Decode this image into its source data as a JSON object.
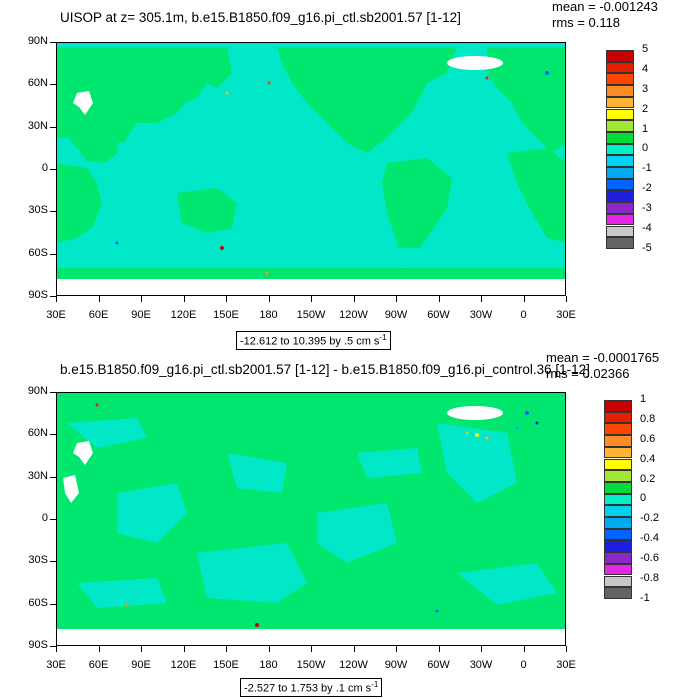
{
  "colors": {
    "land": "#00e66e",
    "ocean": "#00e8c8",
    "ice": "#ffffff",
    "frame": "#000000"
  },
  "panels": [
    {
      "title": "UISOP at z= 305.1m, b.e15.B1850.f09_g16.pi_ctl.sb2001.57 [1-12]",
      "mean": "mean = -0.001243",
      "rms": "rms = 0.118",
      "range_label": "-12.612 to 10.395 by .5 cm s",
      "range_sup": "-1",
      "colorbar_labels": [
        "5",
        "4",
        "3",
        "2",
        "1",
        "0",
        "-1",
        "-2",
        "-3",
        "-4",
        "-5"
      ],
      "colorbar_colors": [
        "#c80000",
        "#e61e00",
        "#ff4600",
        "#ff8c28",
        "#ffb432",
        "#ffff00",
        "#a0e632",
        "#00dc3c",
        "#00f0c8",
        "#00d2f0",
        "#00aaf0",
        "#0064ff",
        "#1e1edc",
        "#8c28c8",
        "#e628e6",
        "#c8c8c8",
        "#646464"
      ]
    },
    {
      "title": "b.e15.B1850.f09_g16.pi_ctl.sb2001.57 [1-12] - b.e15.B1850.f09_g16.pi_control.36 [1-12]",
      "mean": "mean = -0.0001765",
      "rms": "rms = 0.02366",
      "range_label": "-2.527 to 1.753 by .1 cm s",
      "range_sup": "-1",
      "colorbar_labels": [
        "1",
        "0.8",
        "0.6",
        "0.4",
        "0.2",
        "0",
        "-0.2",
        "-0.4",
        "-0.6",
        "-0.8",
        "-1"
      ],
      "colorbar_colors": [
        "#c80000",
        "#e61e00",
        "#ff4600",
        "#ff8c28",
        "#ffb432",
        "#ffff00",
        "#a0e632",
        "#00dc3c",
        "#00f0c8",
        "#00d2f0",
        "#00aaf0",
        "#0064ff",
        "#1e1edc",
        "#8c28c8",
        "#e628e6",
        "#c8c8c8",
        "#646464"
      ]
    }
  ],
  "axes": {
    "lat_labels": [
      "90N",
      "60N",
      "30N",
      "0",
      "30S",
      "60S",
      "90S"
    ],
    "lon_labels": [
      "30E",
      "60E",
      "90E",
      "120E",
      "150E",
      "180",
      "150W",
      "120W",
      "90W",
      "60W",
      "30W",
      "0",
      "30E"
    ]
  }
}
